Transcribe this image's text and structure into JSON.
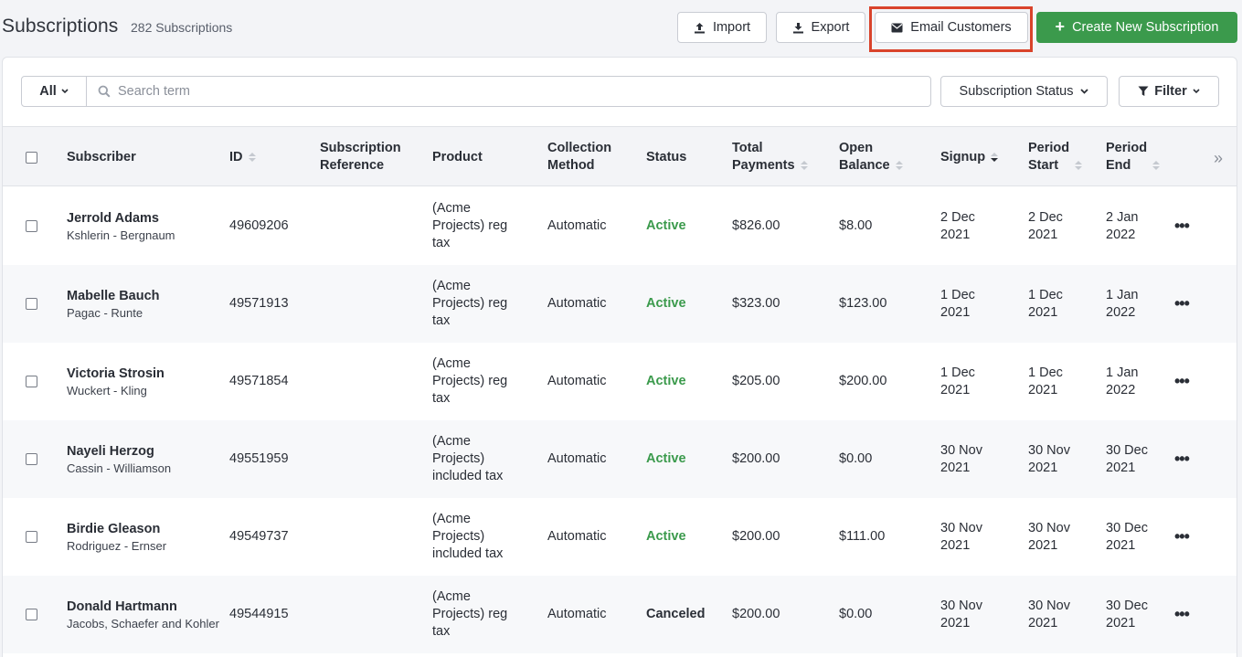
{
  "header": {
    "title": "Subscriptions",
    "count": "282 Subscriptions",
    "import_label": "Import",
    "export_label": "Export",
    "email_label": "Email Customers",
    "create_label": "Create New Subscription",
    "create_icon": "+",
    "accent_color": "#3b9a4c",
    "highlight_color": "#d9432b"
  },
  "toolbar": {
    "scope": "All",
    "search_placeholder": "Search term",
    "status_filter": "Subscription Status",
    "filter_label": "Filter"
  },
  "columns": {
    "subscriber": "Subscriber",
    "id": "ID",
    "reference_1": "Subscription",
    "reference_2": "Reference",
    "product": "Product",
    "collection_1": "Collection",
    "collection_2": "Method",
    "status": "Status",
    "payments_1": "Total",
    "payments_2": "Payments",
    "balance_1": "Open",
    "balance_2": "Balance",
    "signup": "Signup",
    "pstart_1": "Period",
    "pstart_2": "Start",
    "pend_1": "Period",
    "pend_2": "End",
    "expand_icon": "»"
  },
  "rows": [
    {
      "name": "Jerrold Adams",
      "company": "Kshlerin - Bergnaum",
      "id": "49609206",
      "product": [
        "(Acme",
        "Projects) reg",
        "tax"
      ],
      "method": "Automatic",
      "status": "Active",
      "total": "$826.00",
      "balance": "$8.00",
      "signup": [
        "2 Dec",
        "2021"
      ],
      "start": [
        "2 Dec",
        "2021"
      ],
      "end": [
        "2 Jan",
        "2022"
      ],
      "more": "•••"
    },
    {
      "name": "Mabelle Bauch",
      "company": "Pagac - Runte",
      "id": "49571913",
      "product": [
        "(Acme",
        "Projects) reg",
        "tax"
      ],
      "method": "Automatic",
      "status": "Active",
      "total": "$323.00",
      "balance": "$123.00",
      "signup": [
        "1 Dec",
        "2021"
      ],
      "start": [
        "1 Dec",
        "2021"
      ],
      "end": [
        "1 Jan",
        "2022"
      ],
      "more": "•••"
    },
    {
      "name": "Victoria Strosin",
      "company": "Wuckert - Kling",
      "id": "49571854",
      "product": [
        "(Acme",
        "Projects) reg",
        "tax"
      ],
      "method": "Automatic",
      "status": "Active",
      "total": "$205.00",
      "balance": "$200.00",
      "signup": [
        "1 Dec",
        "2021"
      ],
      "start": [
        "1 Dec",
        "2021"
      ],
      "end": [
        "1 Jan",
        "2022"
      ],
      "more": "•••"
    },
    {
      "name": "Nayeli Herzog",
      "company": "Cassin - Williamson",
      "id": "49551959",
      "product": [
        "(Acme",
        "Projects)",
        "included tax"
      ],
      "method": "Automatic",
      "status": "Active",
      "total": "$200.00",
      "balance": "$0.00",
      "signup": [
        "30 Nov",
        "2021"
      ],
      "start": [
        "30 Nov",
        "2021"
      ],
      "end": [
        "30 Dec",
        "2021"
      ],
      "more": "•••"
    },
    {
      "name": "Birdie Gleason",
      "company": "Rodriguez - Ernser",
      "id": "49549737",
      "product": [
        "(Acme",
        "Projects)",
        "included tax"
      ],
      "method": "Automatic",
      "status": "Active",
      "total": "$200.00",
      "balance": "$111.00",
      "signup": [
        "30 Nov",
        "2021"
      ],
      "start": [
        "30 Nov",
        "2021"
      ],
      "end": [
        "30 Dec",
        "2021"
      ],
      "more": "•••"
    },
    {
      "name": "Donald Hartmann",
      "company": "Jacobs, Schaefer and Kohler",
      "id": "49544915",
      "product": [
        "(Acme",
        "Projects) reg",
        "tax"
      ],
      "method": "Automatic",
      "status": "Canceled",
      "total": "$200.00",
      "balance": "$0.00",
      "signup": [
        "30 Nov",
        "2021"
      ],
      "start": [
        "30 Nov",
        "2021"
      ],
      "end": [
        "30 Dec",
        "2021"
      ],
      "more": "•••"
    }
  ]
}
